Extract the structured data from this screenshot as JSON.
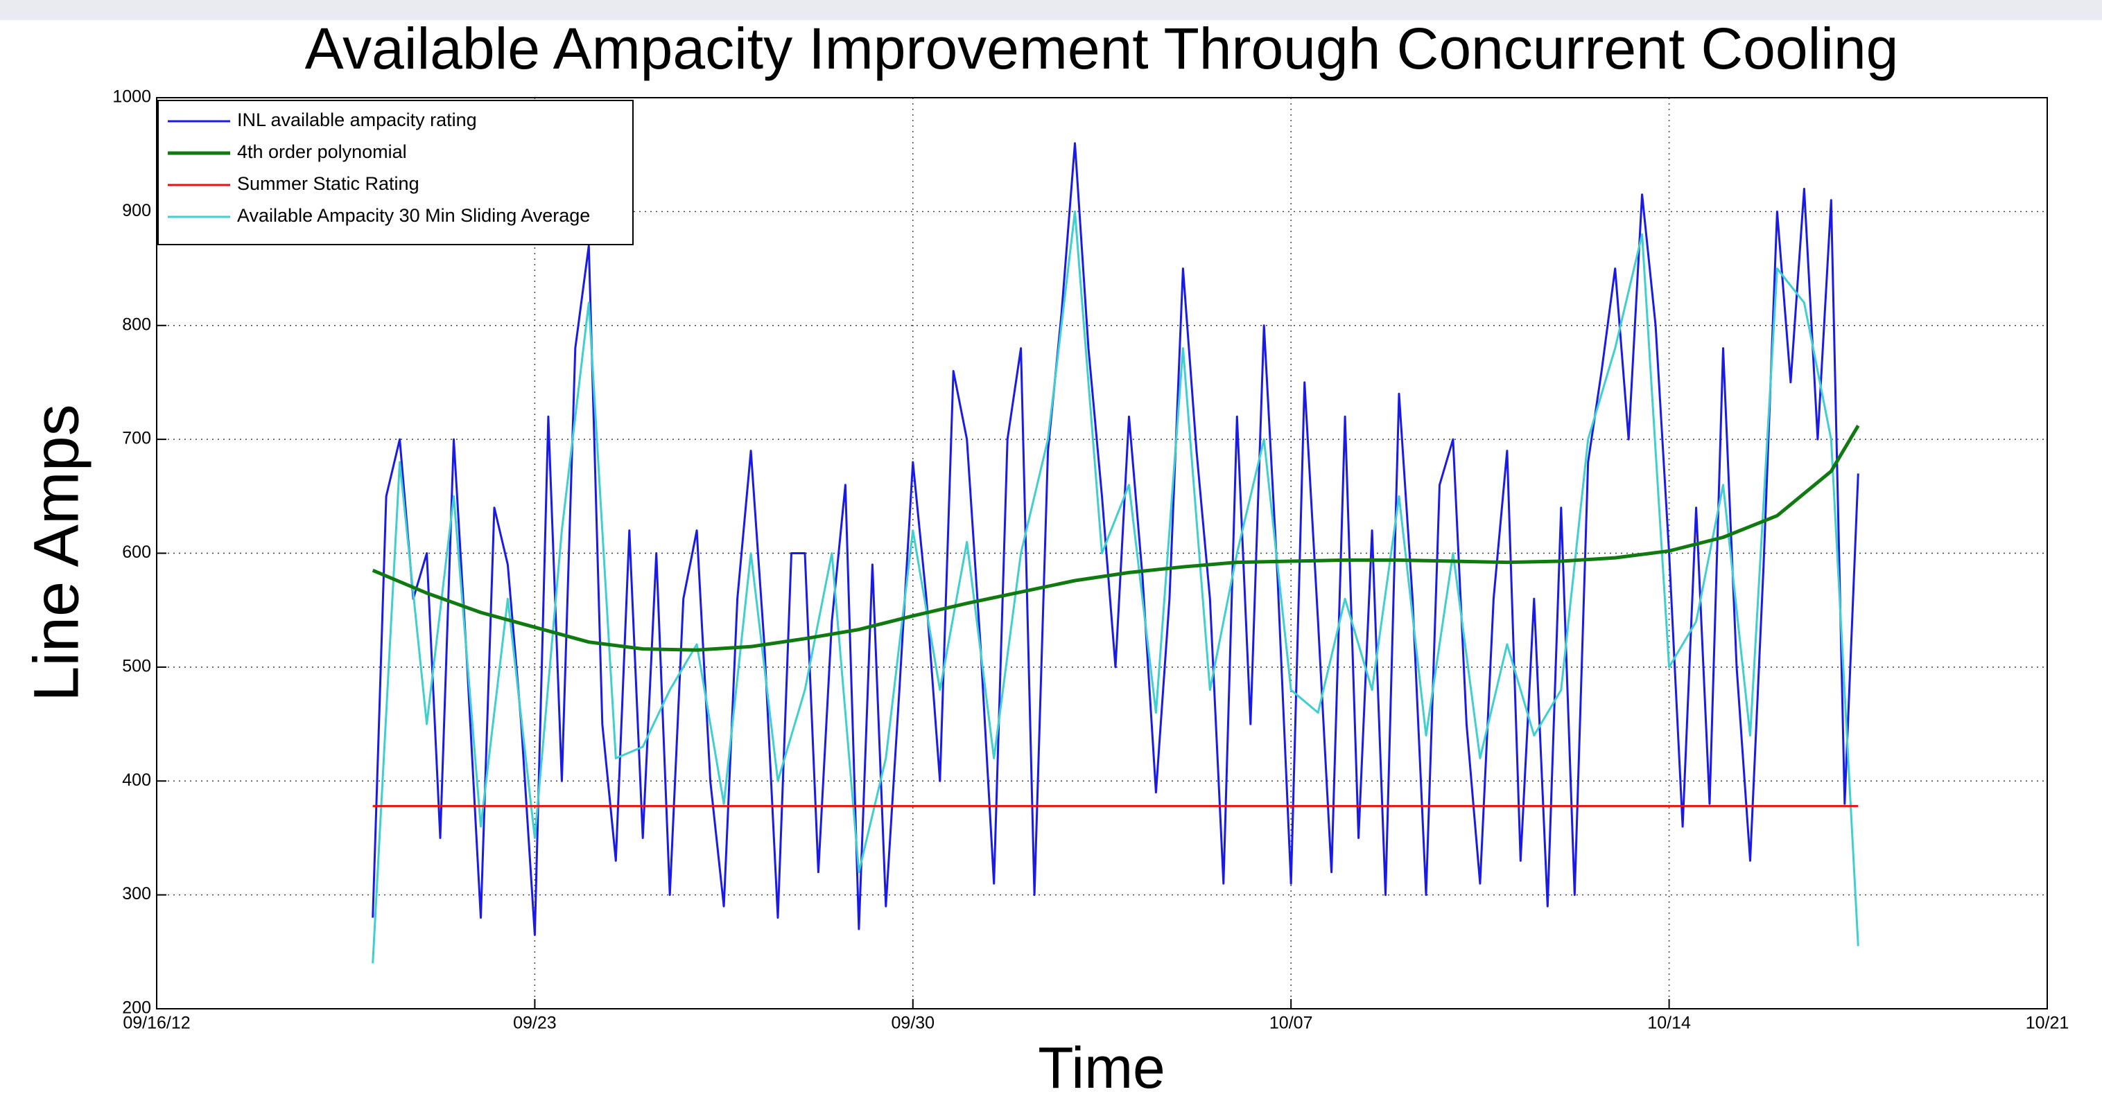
{
  "chart_data": {
    "type": "line",
    "title": "Available Ampacity Improvement Through Concurrent Cooling",
    "xlabel": "Time",
    "ylabel": "Line Amps",
    "xlim": [
      0,
      35
    ],
    "xticks": [
      {
        "value": 0,
        "label": "09/16/12"
      },
      {
        "value": 7,
        "label": "09/23"
      },
      {
        "value": 14,
        "label": "09/30"
      },
      {
        "value": 21,
        "label": "10/07"
      },
      {
        "value": 28,
        "label": "10/14"
      },
      {
        "value": 35,
        "label": "10/21"
      }
    ],
    "ylim": [
      200,
      1000
    ],
    "yticks": [
      200,
      300,
      400,
      500,
      600,
      700,
      800,
      900,
      1000
    ],
    "grid": true,
    "legend": "upper left",
    "series": [
      {
        "name": "INL available ampacity rating",
        "color": "#1a1ae6",
        "x": [
          4,
          4.25,
          4.5,
          4.75,
          5,
          5.25,
          5.5,
          5.75,
          6,
          6.25,
          6.5,
          6.75,
          7,
          7.25,
          7.5,
          7.75,
          8,
          8.25,
          8.5,
          8.75,
          9,
          9.25,
          9.5,
          9.75,
          10,
          10.25,
          10.5,
          10.75,
          11,
          11.25,
          11.5,
          11.75,
          12,
          12.25,
          12.5,
          12.75,
          13,
          13.25,
          13.5,
          13.75,
          14,
          14.25,
          14.5,
          14.75,
          15,
          15.25,
          15.5,
          15.75,
          16,
          16.25,
          16.5,
          16.75,
          17,
          17.25,
          17.5,
          17.75,
          18,
          18.25,
          18.5,
          18.75,
          19,
          19.25,
          19.5,
          19.75,
          20,
          20.25,
          20.5,
          20.75,
          21,
          21.25,
          21.5,
          21.75,
          22,
          22.25,
          22.5,
          22.75,
          23,
          23.25,
          23.5,
          23.75,
          24,
          24.25,
          24.5,
          24.75,
          25,
          25.25,
          25.5,
          25.75,
          26,
          26.25,
          26.5,
          26.75,
          27,
          27.25,
          27.5,
          27.75,
          28,
          28.25,
          28.5,
          28.75,
          29,
          29.25,
          29.5,
          29.75,
          30,
          30.25,
          30.5,
          30.75,
          31,
          31.25,
          31.5
        ],
        "values": [
          280,
          650,
          700,
          560,
          600,
          350,
          700,
          500,
          280,
          640,
          590,
          450,
          265,
          720,
          400,
          780,
          870,
          450,
          330,
          620,
          350,
          600,
          300,
          560,
          620,
          400,
          290,
          560,
          690,
          520,
          280,
          600,
          600,
          320,
          540,
          660,
          270,
          590,
          290,
          480,
          680,
          560,
          400,
          760,
          700,
          520,
          310,
          700,
          780,
          300,
          690,
          810,
          960,
          780,
          650,
          500,
          720,
          580,
          390,
          560,
          850,
          690,
          560,
          310,
          720,
          450,
          800,
          580,
          310,
          750,
          540,
          320,
          720,
          350,
          620,
          300,
          740,
          560,
          300,
          660,
          700,
          450,
          310,
          560,
          690,
          330,
          560,
          290,
          640,
          300,
          680,
          760,
          850,
          700,
          915,
          800,
          600,
          360,
          640,
          380,
          780,
          500,
          330,
          590,
          900,
          750,
          920,
          700,
          910,
          380,
          670
        ]
      },
      {
        "name": "4th order polynomial",
        "color": "#107a10",
        "x": [
          4,
          5,
          6,
          7,
          8,
          9,
          10,
          11,
          12,
          13,
          14,
          15,
          16,
          17,
          18,
          19,
          20,
          21,
          22,
          23,
          24,
          25,
          26,
          27,
          28,
          29,
          30,
          31,
          31.5
        ],
        "values": [
          585,
          565,
          548,
          535,
          522,
          516,
          515,
          518,
          525,
          533,
          545,
          556,
          566,
          576,
          583,
          588,
          592,
          593,
          594,
          594,
          593,
          592,
          593,
          596,
          602,
          614,
          633,
          672,
          712
        ]
      },
      {
        "name": "Summer Static Rating",
        "color": "#e81010",
        "x": [
          4,
          31.5
        ],
        "values": [
          378,
          378
        ]
      },
      {
        "name": "Available Ampacity 30 Min Sliding Average",
        "color": "#3fcfcf",
        "x": [
          4,
          4.5,
          5,
          5.5,
          6,
          6.5,
          7,
          7.5,
          8,
          8.5,
          9,
          9.5,
          10,
          10.5,
          11,
          11.5,
          12,
          12.5,
          13,
          13.5,
          14,
          14.5,
          15,
          15.5,
          16,
          16.5,
          17,
          17.5,
          18,
          18.5,
          19,
          19.5,
          20,
          20.5,
          21,
          21.5,
          22,
          22.5,
          23,
          23.5,
          24,
          24.5,
          25,
          25.5,
          26,
          26.5,
          27,
          27.5,
          28,
          28.5,
          29,
          29.5,
          30,
          30.5,
          31,
          31.5
        ],
        "values": [
          240,
          680,
          450,
          650,
          360,
          560,
          350,
          620,
          820,
          420,
          430,
          480,
          520,
          380,
          600,
          400,
          480,
          600,
          320,
          420,
          620,
          480,
          610,
          420,
          600,
          700,
          900,
          600,
          660,
          460,
          780,
          480,
          600,
          700,
          480,
          460,
          560,
          480,
          650,
          440,
          600,
          420,
          520,
          440,
          480,
          700,
          780,
          880,
          500,
          540,
          660,
          440,
          850,
          820,
          700,
          255
        ]
      }
    ]
  }
}
